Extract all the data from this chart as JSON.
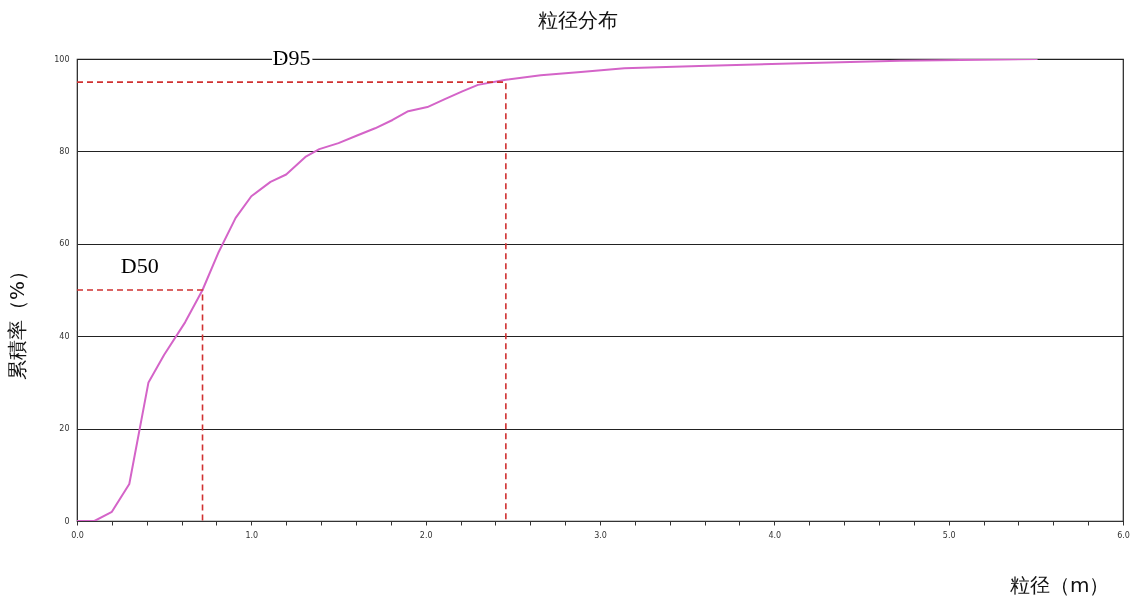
{
  "chart_data": {
    "type": "line",
    "title": "粒径分布",
    "xlabel": "粒径（m）",
    "ylabel": "累積率（%）",
    "xlim": [
      0,
      6
    ],
    "ylim": [
      0,
      100
    ],
    "xticks": [
      {
        "value": 0,
        "label": "0.0"
      },
      {
        "value": 0.2,
        "label": null
      },
      {
        "value": 0.4,
        "label": null
      },
      {
        "value": 0.6,
        "label": null
      },
      {
        "value": 0.8,
        "label": null
      },
      {
        "value": 1,
        "label": "1.0"
      },
      {
        "value": 1.2,
        "label": null
      },
      {
        "value": 1.4,
        "label": null
      },
      {
        "value": 1.6,
        "label": null
      },
      {
        "value": 1.8,
        "label": null
      },
      {
        "value": 2,
        "label": "2.0"
      },
      {
        "value": 2.2,
        "label": null
      },
      {
        "value": 2.4,
        "label": null
      },
      {
        "value": 2.6,
        "label": null
      },
      {
        "value": 2.8,
        "label": null
      },
      {
        "value": 3,
        "label": "3.0"
      },
      {
        "value": 3.2,
        "label": null
      },
      {
        "value": 3.4,
        "label": null
      },
      {
        "value": 3.6,
        "label": null
      },
      {
        "value": 3.8,
        "label": null
      },
      {
        "value": 4,
        "label": "4.0"
      },
      {
        "value": 4.2,
        "label": null
      },
      {
        "value": 4.4,
        "label": null
      },
      {
        "value": 4.6,
        "label": null
      },
      {
        "value": 4.8,
        "label": null
      },
      {
        "value": 5,
        "label": "5.0"
      },
      {
        "value": 5.2,
        "label": null
      },
      {
        "value": 5.4,
        "label": null
      },
      {
        "value": 5.6,
        "label": null
      },
      {
        "value": 5.8,
        "label": null
      },
      {
        "value": 6,
        "label": "6.0"
      }
    ],
    "yticks": [
      0,
      20,
      40,
      60,
      80,
      100
    ],
    "grid": "y",
    "marker": "none",
    "series": [
      {
        "color": "#d464c8",
        "line_style": "solid",
        "x": [
          0,
          0.1,
          0.2,
          0.3,
          0.41,
          0.5,
          0.62,
          0.72,
          0.81,
          0.91,
          1.0,
          1.11,
          1.2,
          1.31,
          1.39,
          1.5,
          1.61,
          1.71,
          1.81,
          1.9,
          2.01,
          2.11,
          2.21,
          2.3,
          2.46,
          2.66,
          2.89,
          3.14,
          3.57,
          4.15,
          4.72,
          5.3,
          5.51
        ],
        "values": [
          0,
          0,
          2,
          8,
          30,
          36,
          43,
          50,
          58,
          65.6,
          70.3,
          73.4,
          75,
          78.8,
          80.5,
          81.8,
          83.5,
          85,
          86.8,
          88.7,
          89.6,
          91.3,
          93,
          94.4,
          95.5,
          96.5,
          97.2,
          98,
          98.5,
          99.1,
          99.6,
          99.9,
          100
        ]
      },
      {
        "name": "D50",
        "type": "line",
        "color": "#d03030",
        "line_style": "dashed",
        "x": [
          0,
          0.72,
          0.72
        ],
        "values": [
          50,
          50,
          0
        ]
      },
      {
        "name": "D95",
        "type": "line",
        "color": "#d03030",
        "line_style": "dashed",
        "x": [
          0,
          2.46,
          2.46
        ],
        "values": [
          95,
          95,
          0
        ]
      }
    ]
  }
}
